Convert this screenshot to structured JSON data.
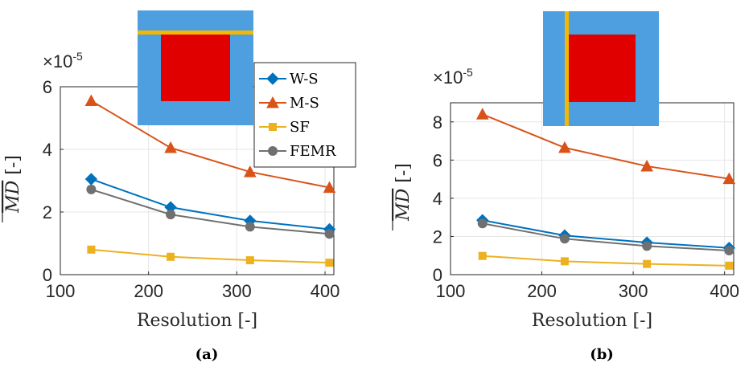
{
  "chart_data": [
    {
      "type": "line",
      "caption": "(a)",
      "xlabel": "Resolution [-]",
      "ylabel_var": "MD",
      "ylabel_unit": "[-]",
      "exponent_base": "×10",
      "exponent_power": "-5",
      "x": [
        135,
        225,
        315,
        405
      ],
      "xlim": [
        100,
        410
      ],
      "xticks": [
        "100",
        "200",
        "300",
        "400"
      ],
      "ylim": [
        0,
        6
      ],
      "yticks": [
        "0",
        "2",
        "4",
        "6"
      ],
      "grid": true,
      "inset": "horizontal-bar",
      "legend": {
        "placement": "upper-right",
        "entries": [
          "W-S",
          "M-S",
          "SF",
          "FEMR"
        ]
      },
      "series": [
        {
          "name": "W-S",
          "color": "#0072BD",
          "marker": "diamond",
          "values": [
            3.05,
            2.15,
            1.72,
            1.45
          ]
        },
        {
          "name": "M-S",
          "color": "#D95319",
          "marker": "triangle",
          "values": [
            5.55,
            4.05,
            3.28,
            2.78
          ]
        },
        {
          "name": "SF",
          "color": "#EDB120",
          "marker": "square",
          "values": [
            0.8,
            0.57,
            0.46,
            0.38
          ]
        },
        {
          "name": "FEMR",
          "color": "#707070",
          "marker": "circle",
          "values": [
            2.72,
            1.92,
            1.53,
            1.3
          ]
        }
      ]
    },
    {
      "type": "line",
      "caption": "(b)",
      "xlabel": "Resolution [-]",
      "ylabel_var": "MD",
      "ylabel_unit": "[-]",
      "exponent_base": "×10",
      "exponent_power": "-5",
      "x": [
        135,
        225,
        315,
        405
      ],
      "xlim": [
        100,
        410
      ],
      "xticks": [
        "100",
        "200",
        "300",
        "400"
      ],
      "ylim": [
        0,
        9
      ],
      "yticks": [
        "0",
        "2",
        "4",
        "6",
        "8"
      ],
      "grid": true,
      "inset": "vertical-bar",
      "series": [
        {
          "name": "W-S",
          "color": "#0072BD",
          "marker": "diamond",
          "values": [
            2.85,
            2.05,
            1.68,
            1.4
          ]
        },
        {
          "name": "M-S",
          "color": "#D95319",
          "marker": "triangle",
          "values": [
            8.4,
            6.65,
            5.68,
            5.02
          ]
        },
        {
          "name": "SF",
          "color": "#EDB120",
          "marker": "square",
          "values": [
            0.98,
            0.7,
            0.56,
            0.47
          ]
        },
        {
          "name": "FEMR",
          "color": "#707070",
          "marker": "circle",
          "values": [
            2.68,
            1.88,
            1.5,
            1.26
          ]
        }
      ]
    }
  ]
}
